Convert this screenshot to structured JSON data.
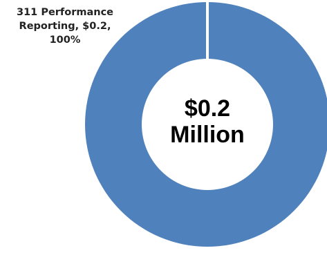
{
  "chart_data": {
    "type": "pie",
    "variant": "donut",
    "slices": [
      {
        "name": "311 Performance Reporting",
        "value": 0.2,
        "percent": 100,
        "label_lines": [
          "311 Performance",
          "Reporting, $0.2,",
          "100%"
        ],
        "color": "#4F81BD"
      }
    ],
    "center_text": [
      "$0.2",
      "Million"
    ],
    "legend": "none"
  }
}
